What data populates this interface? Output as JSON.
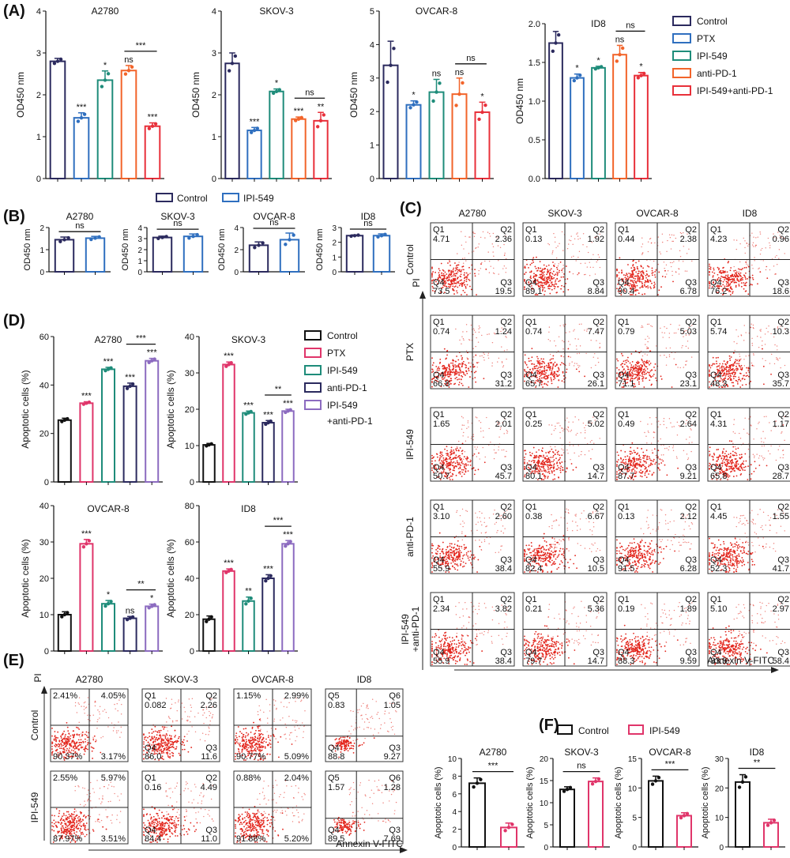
{
  "colors": {
    "control": "#2b2a5e",
    "ptx": "#2f6fbf",
    "ipi": "#1e8c7a",
    "antipd1": "#f2642a",
    "combo": "#e8303a",
    "d_control": "#111111",
    "d_ptx": "#e0356a",
    "d_ipi": "#1e8c7a",
    "d_antipd1": "#2b2a5e",
    "d_combo": "#8c6bc0",
    "f_ipi": "#e0356a",
    "dot": "#e3261d"
  },
  "panel_labels": {
    "A": "(A)",
    "B": "(B)",
    "C": "(C)",
    "D": "(D)",
    "E": "(E)",
    "F": "(F)"
  },
  "legend_A": [
    "Control",
    "PTX",
    "IPI-549",
    "anti-PD-1",
    "IPI-549+anti-PD-1"
  ],
  "legend_B": [
    "Control",
    "IPI-549"
  ],
  "legend_D": [
    "Control",
    "PTX",
    "IPI-549",
    "anti-PD-1",
    "IPI-549",
    "+anti-PD-1"
  ],
  "legend_F": [
    "Control",
    "IPI-549"
  ],
  "chart_data": [
    {
      "panel": "A",
      "type": "bar",
      "title": "A2780",
      "ylabel": "OD450 nm",
      "ylim": [
        0,
        4
      ],
      "yticks": [
        "0",
        "1",
        "2",
        "3",
        "4"
      ],
      "values": [
        2.8,
        1.45,
        2.35,
        2.58,
        1.25
      ],
      "err": [
        0.07,
        0.12,
        0.22,
        0.12,
        0.08
      ],
      "sig": [
        "",
        "***",
        "*",
        "ns",
        "***"
      ],
      "bracket": {
        "from": 3,
        "to": 4,
        "label": "***"
      }
    },
    {
      "panel": "A",
      "type": "bar",
      "title": "SKOV-3",
      "ylabel": "OD450 nm",
      "ylim": [
        0,
        4
      ],
      "yticks": [
        "0",
        "1",
        "2",
        "3",
        "4"
      ],
      "values": [
        2.75,
        1.15,
        2.08,
        1.42,
        1.38
      ],
      "err": [
        0.25,
        0.07,
        0.06,
        0.05,
        0.2
      ],
      "sig": [
        "",
        "***",
        "*",
        "***",
        "**"
      ],
      "bracket": {
        "from": 3,
        "to": 4,
        "label": "ns"
      }
    },
    {
      "panel": "A",
      "type": "bar",
      "title": "OVCAR-8",
      "ylabel": "OD450 nm",
      "ylim": [
        0,
        5
      ],
      "yticks": [
        "0",
        "1",
        "2",
        "3",
        "4",
        "5"
      ],
      "values": [
        3.38,
        2.2,
        2.58,
        2.52,
        1.98
      ],
      "err": [
        0.72,
        0.12,
        0.38,
        0.48,
        0.3
      ],
      "sig": [
        "",
        "*",
        "ns",
        "ns",
        "*"
      ],
      "bracket": {
        "from": 3,
        "to": 4,
        "label": "ns"
      }
    },
    {
      "panel": "A",
      "type": "bar",
      "title": "ID8",
      "ylabel": "OD450 nm",
      "ylim": [
        0,
        2.0
      ],
      "yticks": [
        "0.0",
        "0.5",
        "1.0",
        "1.5",
        "2.0"
      ],
      "values": [
        1.75,
        1.3,
        1.43,
        1.6,
        1.33
      ],
      "err": [
        0.15,
        0.05,
        0.02,
        0.12,
        0.04
      ],
      "sig": [
        "",
        "*",
        "*",
        "ns",
        "*"
      ],
      "bracket": {
        "from": 3,
        "to": 4,
        "label": "ns"
      }
    },
    {
      "panel": "B",
      "type": "bar",
      "title": "A2780",
      "ylabel": "OD450 nm",
      "ylim": [
        0,
        2
      ],
      "yticks": [
        "0",
        "1",
        "2"
      ],
      "values": [
        1.45,
        1.52
      ],
      "err": [
        0.12,
        0.08
      ],
      "bracket": {
        "from": 0,
        "to": 1,
        "label": "ns"
      }
    },
    {
      "panel": "B",
      "type": "bar",
      "title": "SKOV-3",
      "ylabel": "OD450 nm",
      "ylim": [
        0,
        4
      ],
      "yticks": [
        "0",
        "1",
        "2",
        "3",
        "4"
      ],
      "values": [
        3.1,
        3.2
      ],
      "err": [
        0.12,
        0.22
      ],
      "bracket": {
        "from": 0,
        "to": 1,
        "label": "ns"
      }
    },
    {
      "panel": "B",
      "type": "bar",
      "title": "OVCAR-8",
      "ylabel": "OD450 nm",
      "ylim": [
        0,
        4
      ],
      "yticks": [
        "0",
        "2",
        "4"
      ],
      "values": [
        2.4,
        2.9
      ],
      "err": [
        0.3,
        0.6
      ],
      "bracket": {
        "from": 0,
        "to": 1,
        "label": "ns"
      }
    },
    {
      "panel": "B",
      "type": "bar",
      "title": "ID8",
      "ylabel": "OD450 nm",
      "ylim": [
        0,
        3
      ],
      "yticks": [
        "0",
        "1",
        "2",
        "3"
      ],
      "values": [
        2.45,
        2.45
      ],
      "err": [
        0.05,
        0.12
      ],
      "bracket": {
        "from": 0,
        "to": 1,
        "label": "ns"
      }
    },
    {
      "panel": "D",
      "type": "bar",
      "title": "A2780",
      "ylabel": "Apoptotic cells (%)",
      "ylim": [
        0,
        60
      ],
      "yticks": [
        "0",
        "20",
        "40",
        "60"
      ],
      "values": [
        25.5,
        32.5,
        46.5,
        39.5,
        50
      ],
      "err": [
        0.8,
        0.6,
        0.8,
        1.3,
        1.0
      ],
      "sig": [
        "",
        "***",
        "***",
        "***",
        "***"
      ],
      "bracket": {
        "from": 3,
        "to": 4,
        "label": "***"
      }
    },
    {
      "panel": "D",
      "type": "bar",
      "title": "SKOV-3",
      "ylabel": "Apoptotic cells (%)",
      "ylim": [
        0,
        40
      ],
      "yticks": [
        "0",
        "10",
        "20",
        "30",
        "40"
      ],
      "values": [
        10.2,
        32.3,
        19,
        16.3,
        19.5
      ],
      "err": [
        0.4,
        0.7,
        0.5,
        0.6,
        0.5
      ],
      "sig": [
        "",
        "***",
        "***",
        "***",
        "***"
      ],
      "bracket": {
        "from": 3,
        "to": 4,
        "label": "**"
      }
    },
    {
      "panel": "D",
      "type": "bar",
      "title": "OVCAR-8",
      "ylabel": "Apoptotic cells (%)",
      "ylim": [
        0,
        40
      ],
      "yticks": [
        "0",
        "10",
        "20",
        "30",
        "40"
      ],
      "values": [
        10,
        29.5,
        13,
        9,
        12.3
      ],
      "err": [
        0.8,
        1.2,
        0.9,
        0.5,
        0.6
      ],
      "sig": [
        "",
        "***",
        "*",
        "ns",
        "*"
      ],
      "bracket": {
        "from": 3,
        "to": 4,
        "label": "**"
      }
    },
    {
      "panel": "D",
      "type": "bar",
      "title": "ID8",
      "ylabel": "Apoptotic cells (%)",
      "ylim": [
        0,
        80
      ],
      "yticks": [
        "0",
        "20",
        "40",
        "60",
        "80"
      ],
      "values": [
        17.5,
        44,
        27.5,
        40,
        59
      ],
      "err": [
        1.8,
        1.2,
        2.2,
        2.0,
        1.8
      ],
      "sig": [
        "",
        "***",
        "**",
        "***",
        "***"
      ],
      "bracket": {
        "from": 3,
        "to": 4,
        "label": "***"
      }
    },
    {
      "panel": "F",
      "type": "bar",
      "title": "A2780",
      "ylabel": "Apoptotic cells (%)",
      "ylim": [
        0,
        10
      ],
      "yticks": [
        "0",
        "2",
        "4",
        "6",
        "8",
        "10"
      ],
      "values": [
        7.2,
        2.2
      ],
      "err": [
        0.6,
        0.5
      ],
      "bracket": {
        "from": 0,
        "to": 1,
        "label": "***"
      }
    },
    {
      "panel": "F",
      "type": "bar",
      "title": "SKOV-3",
      "ylabel": "Apoptotic cells (%)",
      "ylim": [
        0,
        20
      ],
      "yticks": [
        "0",
        "5",
        "10",
        "15",
        "20"
      ],
      "values": [
        13,
        14.8
      ],
      "err": [
        0.6,
        0.8
      ],
      "bracket": {
        "from": 0,
        "to": 1,
        "label": "ns"
      }
    },
    {
      "panel": "F",
      "type": "bar",
      "title": "OVCAR-8",
      "ylabel": "Apoptotic cells (%)",
      "ylim": [
        0,
        15
      ],
      "yticks": [
        "0",
        "5",
        "10",
        "15"
      ],
      "values": [
        11.2,
        5.3
      ],
      "err": [
        0.8,
        0.5
      ],
      "bracket": {
        "from": 0,
        "to": 1,
        "label": "***"
      }
    },
    {
      "panel": "F",
      "type": "bar",
      "title": "ID8",
      "ylabel": "Apoptotic cells (%)",
      "ylim": [
        0,
        30
      ],
      "yticks": [
        "0",
        "10",
        "20",
        "30"
      ],
      "values": [
        22,
        8.2
      ],
      "err": [
        2.5,
        1.2
      ],
      "bracket": {
        "from": 0,
        "to": 1,
        "label": "**"
      }
    }
  ],
  "flow_C": {
    "columns": [
      "A2780",
      "SKOV-3",
      "OVCAR-8",
      "ID8"
    ],
    "rows": [
      "Control",
      "PTX",
      "IPI-549",
      "anti-PD-1",
      "IPI-549",
      "+anti-PD-1"
    ],
    "row_count": 5,
    "ylabel": "PI",
    "xlabel": "Annexin V-FITC",
    "cells": [
      [
        {
          "q": [
            "Q1",
            "Q2",
            "Q4",
            "Q3"
          ],
          "v": [
            "4.71",
            "2.36",
            "73.5",
            "19.5"
          ]
        },
        {
          "q": [
            "Q1",
            "Q2",
            "Q4",
            "Q3"
          ],
          "v": [
            "0.13",
            "1.92",
            "89.1",
            "8.84"
          ]
        },
        {
          "q": [
            "Q1",
            "Q2",
            "Q4",
            "Q3"
          ],
          "v": [
            "0.44",
            "2.38",
            "90.4",
            "6.78"
          ]
        },
        {
          "q": [
            "Q1",
            "Q2",
            "Q4",
            "Q3"
          ],
          "v": [
            "4.23",
            "0.96",
            "76.2",
            "18.6"
          ]
        }
      ],
      [
        {
          "q": [
            "Q1",
            "Q2",
            "Q4",
            "Q3"
          ],
          "v": [
            "0.74",
            "1.24",
            "66.8",
            "31.2"
          ]
        },
        {
          "q": [
            "Q1",
            "Q2",
            "Q4",
            "Q3"
          ],
          "v": [
            "0.74",
            "7.47",
            "65.7",
            "26.1"
          ]
        },
        {
          "q": [
            "Q1",
            "Q2",
            "Q4",
            "Q3"
          ],
          "v": [
            "0.79",
            "5.03",
            "71.1",
            "23.1"
          ]
        },
        {
          "q": [
            "Q1",
            "Q2",
            "Q4",
            "Q3"
          ],
          "v": [
            "5.74",
            "10.3",
            "48.3",
            "35.7"
          ]
        }
      ],
      [
        {
          "q": [
            "Q1",
            "Q2",
            "Q4",
            "Q3"
          ],
          "v": [
            "1.65",
            "2.01",
            "50.7",
            "45.7"
          ]
        },
        {
          "q": [
            "Q1",
            "Q2",
            "Q4",
            "Q3"
          ],
          "v": [
            "0.25",
            "5.02",
            "80.1",
            "14.7"
          ]
        },
        {
          "q": [
            "Q1",
            "Q2",
            "Q4",
            "Q3"
          ],
          "v": [
            "0.49",
            "2.64",
            "87.7",
            "9.21"
          ]
        },
        {
          "q": [
            "Q1",
            "Q2",
            "Q4",
            "Q3"
          ],
          "v": [
            "4.31",
            "1.17",
            "65.8",
            "28.7"
          ]
        }
      ],
      [
        {
          "q": [
            "Q1",
            "Q2",
            "Q4",
            "Q3"
          ],
          "v": [
            "3.10",
            "2.60",
            "55.9",
            "38.4"
          ]
        },
        {
          "q": [
            "Q1",
            "Q2",
            "Q4",
            "Q3"
          ],
          "v": [
            "0.38",
            "6.67",
            "82.4",
            "10.5"
          ]
        },
        {
          "q": [
            "Q1",
            "Q2",
            "Q4",
            "Q3"
          ],
          "v": [
            "0.13",
            "2.12",
            "91.5",
            "6.28"
          ]
        },
        {
          "q": [
            "Q1",
            "Q2",
            "Q4",
            "Q3"
          ],
          "v": [
            "4.45",
            "1.55",
            "52.3",
            "41.7"
          ]
        }
      ],
      [
        {
          "q": [
            "Q1",
            "Q2",
            "Q4",
            "Q3"
          ],
          "v": [
            "2.34",
            "3.82",
            "55.9",
            "38.4"
          ]
        },
        {
          "q": [
            "Q1",
            "Q2",
            "Q4",
            "Q3"
          ],
          "v": [
            "0.21",
            "5.36",
            "79.7",
            "14.7"
          ]
        },
        {
          "q": [
            "Q1",
            "Q2",
            "Q4",
            "Q3"
          ],
          "v": [
            "0.19",
            "1.89",
            "88.3",
            "9.59"
          ]
        },
        {
          "q": [
            "Q1",
            "Q2",
            "Q4",
            "Q3"
          ],
          "v": [
            "5.10",
            "2.97",
            "33.5",
            "58.4"
          ]
        }
      ]
    ]
  },
  "flow_E": {
    "columns": [
      "A2780",
      "SKOV-3",
      "OVCAR-8",
      "ID8"
    ],
    "rows": [
      "Control",
      "IPI-549"
    ],
    "ylabel": "PI",
    "xlabel": "Annexin V-FITC",
    "cells": [
      [
        {
          "q": [
            "",
            "",
            "",
            ""
          ],
          "v": [
            "2.41%",
            "4.05%",
            "90.37%",
            "3.17%"
          ]
        },
        {
          "q": [
            "Q1",
            "Q2",
            "Q4",
            "Q3"
          ],
          "v": [
            "0.082",
            "2.26",
            "86.0",
            "11.6"
          ]
        },
        {
          "q": [
            "",
            "",
            "",
            ""
          ],
          "v": [
            "1.15%",
            "2.99%",
            "90.77%",
            "5.09%"
          ]
        },
        {
          "q": [
            "Q5",
            "Q6",
            "Q4",
            "Q3"
          ],
          "v": [
            "0.83",
            "1.05",
            "88.8",
            "9.27"
          ]
        }
      ],
      [
        {
          "q": [
            "",
            "",
            "",
            ""
          ],
          "v": [
            "2.55%",
            "5.97%",
            "87.97%",
            "3.51%"
          ]
        },
        {
          "q": [
            "Q1",
            "Q2",
            "Q4",
            "Q3"
          ],
          "v": [
            "0.16",
            "4.49",
            "84.4",
            "11.0"
          ]
        },
        {
          "q": [
            "",
            "",
            "",
            ""
          ],
          "v": [
            "0.88%",
            "2.04%",
            "91.88%",
            "5.20%"
          ]
        },
        {
          "q": [
            "Q5",
            "Q6",
            "Q4",
            "Q3"
          ],
          "v": [
            "1.57",
            "1.28",
            "89.5",
            "7.69"
          ]
        }
      ]
    ]
  }
}
